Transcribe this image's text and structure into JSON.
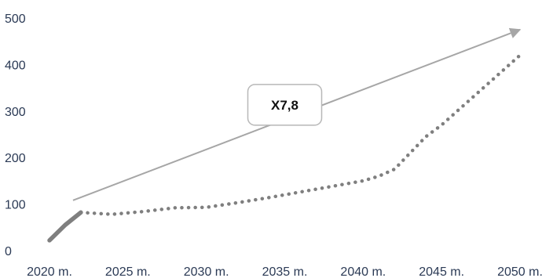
{
  "chart_data": {
    "type": "line",
    "title": "",
    "xlabel": "",
    "ylabel": "",
    "x_tick_labels": [
      "2020 m.",
      "2025 m.",
      "2030 m.",
      "2035 m.",
      "2040 m.",
      "2045 m.",
      "2050 m."
    ],
    "y_ticks": [
      0,
      100,
      200,
      300,
      400,
      500
    ],
    "xlim": [
      2020,
      2050
    ],
    "ylim": [
      0,
      500
    ],
    "grid": false,
    "legend": "none",
    "series": [
      {
        "style": "solid",
        "color": "#7f7f7f",
        "x": [
          2020,
          2021,
          2022
        ],
        "y": [
          22,
          55,
          82
        ]
      },
      {
        "style": "dotted",
        "color": "#7f7f7f",
        "x": [
          2022,
          2024,
          2026,
          2028,
          2030,
          2032,
          2034,
          2036,
          2038,
          2040,
          2041,
          2042,
          2043,
          2044,
          2045,
          2046,
          2047,
          2048,
          2049,
          2050
        ],
        "y": [
          82,
          78,
          84,
          92,
          93,
          103,
          114,
          126,
          138,
          150,
          160,
          175,
          210,
          245,
          270,
          300,
          330,
          360,
          390,
          420
        ]
      }
    ],
    "trend_arrow": {
      "from": [
        2021.5,
        108
      ],
      "to": [
        2050,
        475
      ],
      "color": "#a6a6a6"
    },
    "annotation": {
      "text": "X7,8",
      "anchor": [
        2035,
        315
      ]
    }
  }
}
